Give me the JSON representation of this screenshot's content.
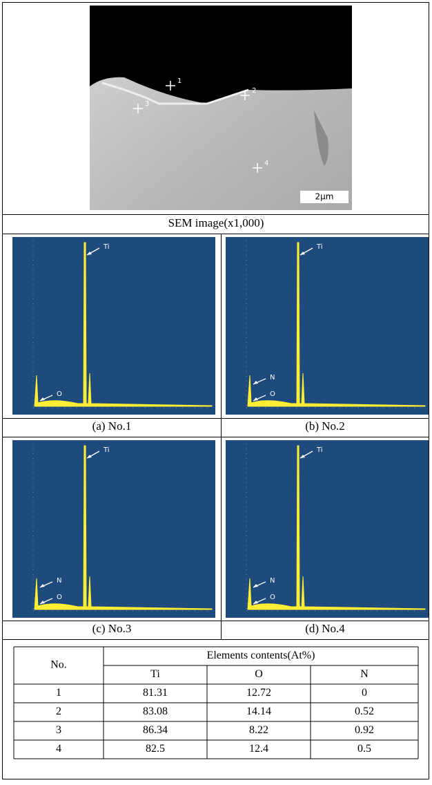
{
  "sem": {
    "markers": [
      "1",
      "2",
      "3",
      "4"
    ],
    "scale_bar": "2μm",
    "caption": "SEM image(x1,000)"
  },
  "panels": [
    {
      "caption": "(a)  No.1",
      "peaks": [
        "Ti",
        "O"
      ]
    },
    {
      "caption": "(b)  No.2",
      "peaks": [
        "Ti",
        "N",
        "O"
      ]
    },
    {
      "caption": "(c)  No.3",
      "peaks": [
        "Ti",
        "N",
        "O"
      ]
    },
    {
      "caption": "(d)  No.4",
      "peaks": [
        "Ti",
        "N",
        "O"
      ]
    }
  ],
  "table": {
    "header": [
      "No.",
      "Elements  contents(At%)"
    ],
    "subheader": [
      "Ti",
      "O",
      "N"
    ],
    "rows": [
      [
        "1",
        "81.31",
        "12.72",
        "0"
      ],
      [
        "2",
        "83.08",
        "14.14",
        "0.52"
      ],
      [
        "3",
        "86.34",
        "8.22",
        "0.92"
      ],
      [
        "4",
        "82.5",
        "12.4",
        "0.5"
      ]
    ]
  }
}
